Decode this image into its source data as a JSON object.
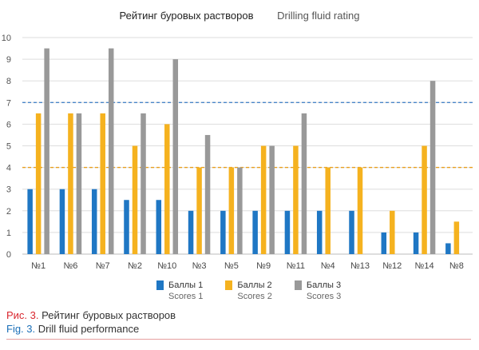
{
  "header": {
    "title_ru": "Рейтинг буровых растворов",
    "title_en": "Drilling fluid rating"
  },
  "chart_data": {
    "type": "bar",
    "title": "Рейтинг буровых растворов   Drilling fluid rating",
    "categories": [
      "№1",
      "№6",
      "№7",
      "№2",
      "№10",
      "№3",
      "№5",
      "№9",
      "№11",
      "№4",
      "№13",
      "№12",
      "№14",
      "№8"
    ],
    "series": [
      {
        "name": "Баллы 1",
        "name_en": "Scores 1",
        "color": "#1f77c4",
        "values": [
          3,
          3,
          3,
          2.5,
          2.5,
          2,
          2,
          2,
          2,
          2,
          2,
          1,
          1,
          0.5
        ]
      },
      {
        "name": "Баллы 2",
        "name_en": "Scores 2",
        "color": "#f5b21f",
        "values": [
          6.5,
          6.5,
          6.5,
          5,
          6,
          4,
          4,
          5,
          5,
          4,
          4,
          2,
          5,
          1.5
        ]
      },
      {
        "name": "Баллы 3",
        "name_en": "Scores 3",
        "color": "#999999",
        "values": [
          9.5,
          6.5,
          9.5,
          6.5,
          9,
          5.5,
          4,
          5,
          6.5,
          null,
          null,
          null,
          8,
          null
        ]
      }
    ],
    "ylim": [
      0,
      10
    ],
    "yticks": [
      "0",
      "1",
      "2",
      "3",
      "4",
      "5",
      "6",
      "7",
      "8",
      "9",
      "10"
    ],
    "reference_lines": [
      {
        "value": 7,
        "color": "#4a86c8",
        "style": "dashed"
      },
      {
        "value": 4,
        "color": "#e8a020",
        "style": "dashed"
      }
    ],
    "xlabel": "",
    "ylabel": "",
    "grid": "horizontal"
  },
  "caption": {
    "ru_label": "Рис. 3.",
    "ru_text": "Рейтинг буровых растворов",
    "en_label": "Fig. 3.",
    "en_text": "Drill fluid performance"
  }
}
